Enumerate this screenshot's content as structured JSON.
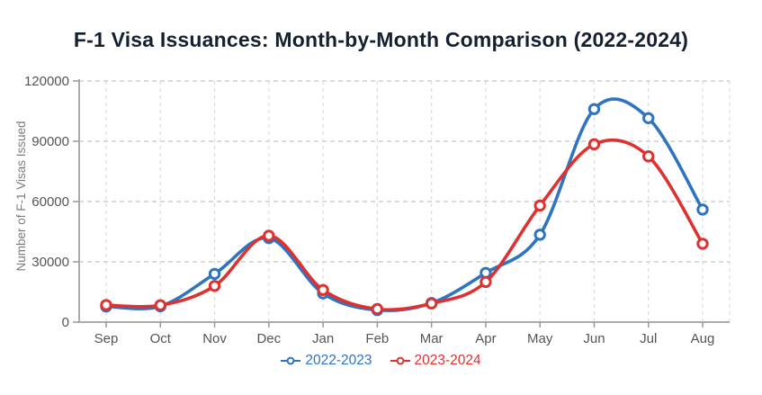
{
  "title": "F-1 Visa Issuances: Month-by-Month Comparison (2022-2024)",
  "colors": {
    "series_blue": "#2E74C0",
    "series_red": "#DC3232",
    "title_text": "#16212f",
    "tick_label": "#555555",
    "axis_label": "#7d7d7d",
    "spine": "#ababab",
    "tick_mark": "#999999",
    "grid_horizontal": "#c4c4c4",
    "grid_vertical": "#dcdcdc",
    "marker_fill": "#ffffff",
    "background": "#ffffff"
  },
  "chart_data": {
    "type": "line",
    "title": "F-1 Visa Issuances: Month-by-Month Comparison (2022-2024)",
    "xlabel": "",
    "ylabel": "Number of F-1 Visas Issued",
    "categories": [
      "Sep",
      "Oct",
      "Nov",
      "Dec",
      "Jan",
      "Feb",
      "Mar",
      "Apr",
      "May",
      "Jun",
      "Jul",
      "Aug"
    ],
    "yticks": [
      0,
      30000,
      60000,
      90000,
      120000
    ],
    "ylim": [
      0,
      120000
    ],
    "grid": true,
    "grid_style": "dashed",
    "legend_position": "bottom",
    "marker": "open-circle",
    "line_style": "smooth",
    "series": [
      {
        "name": "2022-2023",
        "color": "#2E74C0",
        "values": [
          7800,
          7900,
          24000,
          41800,
          14300,
          6000,
          9500,
          24500,
          43500,
          106000,
          101500,
          56000
        ]
      },
      {
        "name": "2023-2024",
        "color": "#DC3232",
        "values": [
          8500,
          8400,
          18000,
          43000,
          16000,
          6500,
          9300,
          20000,
          58000,
          88500,
          82500,
          39000
        ]
      }
    ]
  }
}
